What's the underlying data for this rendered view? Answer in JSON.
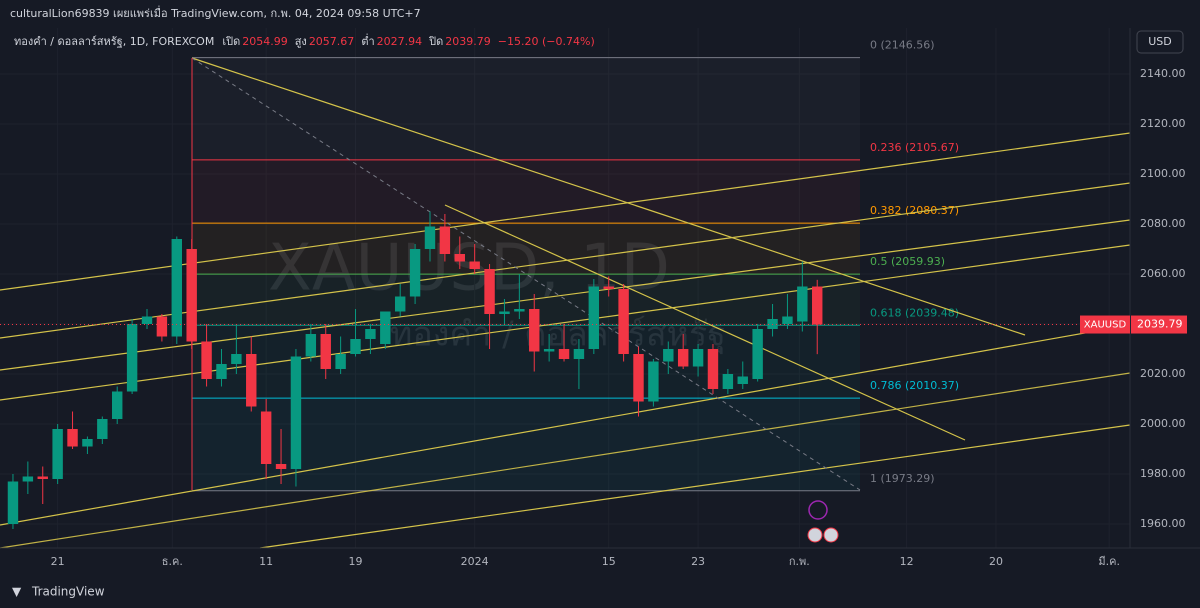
{
  "header": {
    "text": "culturalLion69839 เผยแพร่เมื่อ TradingView.com, ก.พ. 04, 2024 09:58 UTC+7"
  },
  "footer": {
    "brand": "TradingView"
  },
  "chart_data": {
    "type": "candlestick",
    "title": "ทองคำ / ดอลลาร์สหรัฐ, 1D, FOREXCOM",
    "legend_labels": {
      "open": "เปิด",
      "high": "สูง",
      "low": "ต่ำ",
      "close": "ปิด",
      "change": "−15.20 (−0.74%)"
    },
    "currency": "USD",
    "symbol": "XAUUSD",
    "watermark": "XAUUSD, 1D",
    "watermark_sub": "ทองคำ / ดอลลาร์สหรัฐ",
    "up_color": "#089981",
    "down_color": "#f23645",
    "candles": [
      {
        "open": 1960,
        "high": 1980,
        "low": 1958,
        "close": 1977
      },
      {
        "open": 1977,
        "high": 1985,
        "low": 1972,
        "close": 1979
      },
      {
        "open": 1979,
        "high": 1983,
        "low": 1968,
        "close": 1978
      },
      {
        "open": 1978,
        "high": 2000,
        "low": 1976,
        "close": 1998
      },
      {
        "open": 1998,
        "high": 2005,
        "low": 1990,
        "close": 1991
      },
      {
        "open": 1991,
        "high": 1995,
        "low": 1988,
        "close": 1994
      },
      {
        "open": 1994,
        "high": 2003,
        "low": 1992,
        "close": 2002
      },
      {
        "open": 2002,
        "high": 2015,
        "low": 2000,
        "close": 2013
      },
      {
        "open": 2013,
        "high": 2042,
        "low": 2012,
        "close": 2040
      },
      {
        "open": 2040,
        "high": 2046,
        "low": 2038,
        "close": 2043
      },
      {
        "open": 2043,
        "high": 2044,
        "low": 2033,
        "close": 2035
      },
      {
        "open": 2035,
        "high": 2075,
        "low": 2032,
        "close": 2074
      },
      {
        "open": 2070,
        "high": 2074,
        "low": 2030,
        "close": 2033
      },
      {
        "open": 2033,
        "high": 2040,
        "low": 2015,
        "close": 2018
      },
      {
        "open": 2018,
        "high": 2030,
        "low": 2015,
        "close": 2024
      },
      {
        "open": 2024,
        "high": 2040,
        "low": 2020,
        "close": 2028
      },
      {
        "open": 2028,
        "high": 2035,
        "low": 2005,
        "close": 2007
      },
      {
        "open": 2005,
        "high": 2010,
        "low": 1978,
        "close": 1984
      },
      {
        "open": 1984,
        "high": 1998,
        "low": 1976,
        "close": 1982
      },
      {
        "open": 1982,
        "high": 2030,
        "low": 1975,
        "close": 2027
      },
      {
        "open": 2027,
        "high": 2040,
        "low": 2025,
        "close": 2036
      },
      {
        "open": 2036,
        "high": 2040,
        "low": 2018,
        "close": 2022
      },
      {
        "open": 2022,
        "high": 2035,
        "low": 2020,
        "close": 2028
      },
      {
        "open": 2028,
        "high": 2046,
        "low": 2027,
        "close": 2034
      },
      {
        "open": 2034,
        "high": 2040,
        "low": 2028,
        "close": 2038
      },
      {
        "open": 2032,
        "high": 2045,
        "low": 2030,
        "close": 2045
      },
      {
        "open": 2045,
        "high": 2056,
        "low": 2043,
        "close": 2051
      },
      {
        "open": 2051,
        "high": 2072,
        "low": 2048,
        "close": 2070
      },
      {
        "open": 2070,
        "high": 2085,
        "low": 2065,
        "close": 2079
      },
      {
        "open": 2079,
        "high": 2084,
        "low": 2065,
        "close": 2068
      },
      {
        "open": 2068,
        "high": 2075,
        "low": 2062,
        "close": 2065
      },
      {
        "open": 2065,
        "high": 2072,
        "low": 2060,
        "close": 2062
      },
      {
        "open": 2062,
        "high": 2064,
        "low": 2030,
        "close": 2044
      },
      {
        "open": 2044,
        "high": 2050,
        "low": 2040,
        "close": 2045
      },
      {
        "open": 2045,
        "high": 2060,
        "low": 2042,
        "close": 2046
      },
      {
        "open": 2046,
        "high": 2052,
        "low": 2021,
        "close": 2029
      },
      {
        "open": 2029,
        "high": 2036,
        "low": 2025,
        "close": 2030
      },
      {
        "open": 2030,
        "high": 2040,
        "low": 2025,
        "close": 2026
      },
      {
        "open": 2026,
        "high": 2034,
        "low": 2014,
        "close": 2030
      },
      {
        "open": 2030,
        "high": 2058,
        "low": 2028,
        "close": 2055
      },
      {
        "open": 2055,
        "high": 2059,
        "low": 2051,
        "close": 2054
      },
      {
        "open": 2054,
        "high": 2056,
        "low": 2025,
        "close": 2028
      },
      {
        "open": 2028,
        "high": 2031,
        "low": 2003,
        "close": 2009
      },
      {
        "open": 2009,
        "high": 2026,
        "low": 2007,
        "close": 2025
      },
      {
        "open": 2025,
        "high": 2033,
        "low": 2020,
        "close": 2030
      },
      {
        "open": 2030,
        "high": 2036,
        "low": 2022,
        "close": 2023
      },
      {
        "open": 2023,
        "high": 2032,
        "low": 2019,
        "close": 2030
      },
      {
        "open": 2030,
        "high": 2032,
        "low": 2012,
        "close": 2014
      },
      {
        "open": 2014,
        "high": 2022,
        "low": 2012,
        "close": 2020
      },
      {
        "open": 2016,
        "high": 2025,
        "low": 2014,
        "close": 2019
      },
      {
        "open": 2018,
        "high": 2040,
        "low": 2017,
        "close": 2038
      },
      {
        "open": 2038,
        "high": 2048,
        "low": 2035,
        "close": 2042
      },
      {
        "open": 2040,
        "high": 2052,
        "low": 2038,
        "close": 2043
      },
      {
        "open": 2041,
        "high": 2065,
        "low": 2037,
        "close": 2055
      },
      {
        "open": 2054.99,
        "high": 2057.67,
        "low": 2027.94,
        "close": 2039.79
      }
    ],
    "xlim": [
      -0.87,
      75
    ],
    "xticks": [
      {
        "value": 3,
        "label": "21"
      },
      {
        "value": 10.7,
        "label": "ธ.ค."
      },
      {
        "value": 17,
        "label": "11"
      },
      {
        "value": 23,
        "label": "19"
      },
      {
        "value": 31,
        "label": "2024"
      },
      {
        "value": 40,
        "label": "15"
      },
      {
        "value": 46,
        "label": "23"
      },
      {
        "value": 52.8,
        "label": "ก.พ."
      },
      {
        "value": 60,
        "label": "12"
      },
      {
        "value": 66,
        "label": "20"
      },
      {
        "value": 73.6,
        "label": "มี.ค."
      }
    ],
    "ylim": [
      1950.4,
      2158.4
    ],
    "yticks": [
      {
        "value": 1960,
        "label": "1960.00"
      },
      {
        "value": 1980,
        "label": "1980.00"
      },
      {
        "value": 2000,
        "label": "2000.00"
      },
      {
        "value": 2020,
        "label": "2020.00"
      },
      {
        "value": 2040,
        "label": "2040.00"
      },
      {
        "value": 2060,
        "label": "2060.00"
      },
      {
        "value": 2080,
        "label": "2080.00"
      },
      {
        "value": 2100,
        "label": "2100.00"
      },
      {
        "value": 2120,
        "label": "2120.00"
      },
      {
        "value": 2140,
        "label": "2140.00"
      }
    ],
    "fib_levels": [
      {
        "value": 2146.56,
        "label": "0 (2146.56)",
        "color": "#787b86"
      },
      {
        "value": 2105.67,
        "label": "0.236 (2105.67)",
        "color": "#f23645"
      },
      {
        "value": 2080.37,
        "label": "0.382 (2080.37)",
        "color": "#ff9800"
      },
      {
        "value": 2059.93,
        "label": "0.5 (2059.93)",
        "color": "#4caf50"
      },
      {
        "value": 2039.48,
        "label": "0.618 (2039.48)",
        "color": "#089981"
      },
      {
        "value": 2010.37,
        "label": "0.786 (2010.37)",
        "color": "#00bcd4"
      },
      {
        "value": 1973.29,
        "label": "1 (1973.29)",
        "color": "#787b86"
      }
    ]
  }
}
